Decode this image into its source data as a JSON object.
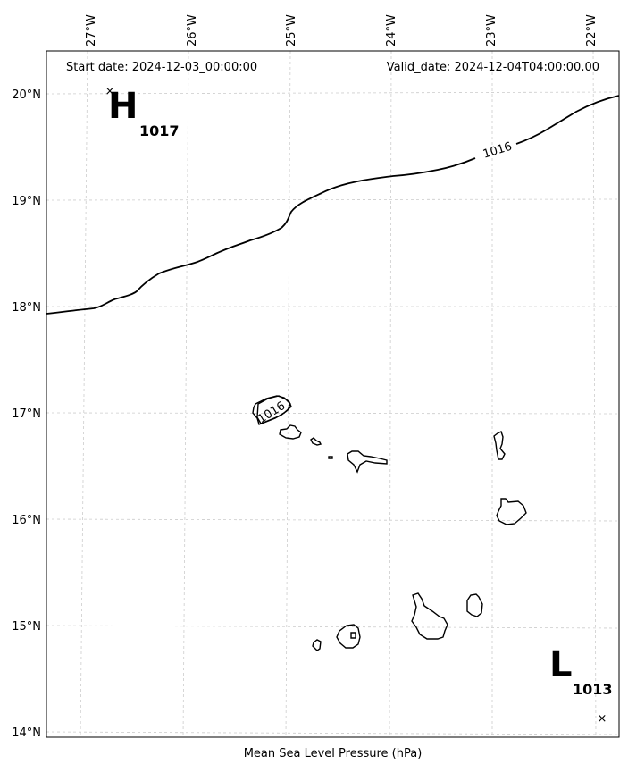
{
  "header": {
    "start_date": "Start date: 2024-12-03_00:00:00",
    "valid_date": "Valid_date: 2024-12-04T04:00:00.00"
  },
  "caption": "Mean Sea Level Pressure (hPa)",
  "longitude_ticks": [
    "27°W",
    "26°W",
    "25°W",
    "24°W",
    "23°W",
    "22°W"
  ],
  "latitude_ticks": [
    "20°N",
    "19°N",
    "18°N",
    "17°N",
    "16°N",
    "15°N",
    "14°N"
  ],
  "pressure_centers": {
    "high": {
      "letter": "H",
      "value": "1017"
    },
    "low": {
      "letter": "L",
      "value": "1013"
    }
  },
  "contour_labels": [
    "1016",
    "1016"
  ]
}
